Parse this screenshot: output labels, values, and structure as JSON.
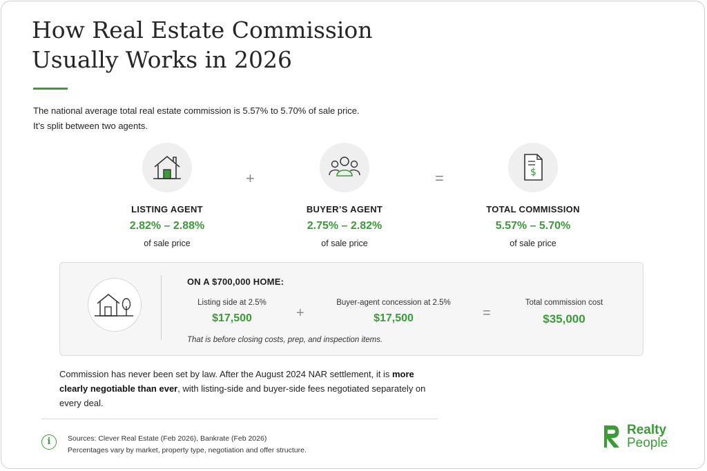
{
  "title": "How Real Estate Commission Usually Works in 2026",
  "intro": {
    "line1": "The national average total real estate commission is 5.57% to 5.70% of sale price.",
    "line2": "It’s split between two agents."
  },
  "agents": [
    {
      "name": "LISTING AGENT",
      "range": "2.82% – 2.88%",
      "unit": "of sale price",
      "icon": "house-icon"
    },
    {
      "name": "BUYER’S AGENT",
      "range": "2.75% – 2.82%",
      "unit": "of sale price",
      "icon": "people-icon"
    },
    {
      "name": "TOTAL COMMISSION",
      "range": "5.57% – 5.70%",
      "unit": "of sale price",
      "icon": "document-dollar-icon"
    }
  ],
  "operators": {
    "plus": "+",
    "equals": "="
  },
  "example": {
    "heading": "ON A $700,000 HOME:",
    "listing_label": "Listing side at 2.5%",
    "listing_value": "$17,500",
    "buyer_label": "Buyer-agent concession at 2.5%",
    "buyer_value": "$17,500",
    "total_label": "Total commission cost",
    "total_value": "$35,000",
    "note": "That is before closing costs, prep, and inspection items.",
    "icon": "house-tree-icon"
  },
  "body": {
    "part1": "Commission has never been set by law. After the August 2024 NAR settlement, it is ",
    "bold": "more clearly negotiable than ever",
    "part2": ", with listing-side and buyer-side fees negotiated separately on every deal."
  },
  "footer": {
    "sources": "Sources: Clever Real Estate (Feb 2026), Bankrate (Feb 2026)",
    "note": "Percentages vary by market, property type, negotiation and offer structure.",
    "info_glyph": "i"
  },
  "brand": {
    "word1": "Realty",
    "word2": "People"
  },
  "colors": {
    "accent": "#3a9b37",
    "text": "#1d1d1d",
    "panel": "#f6f6f6"
  }
}
